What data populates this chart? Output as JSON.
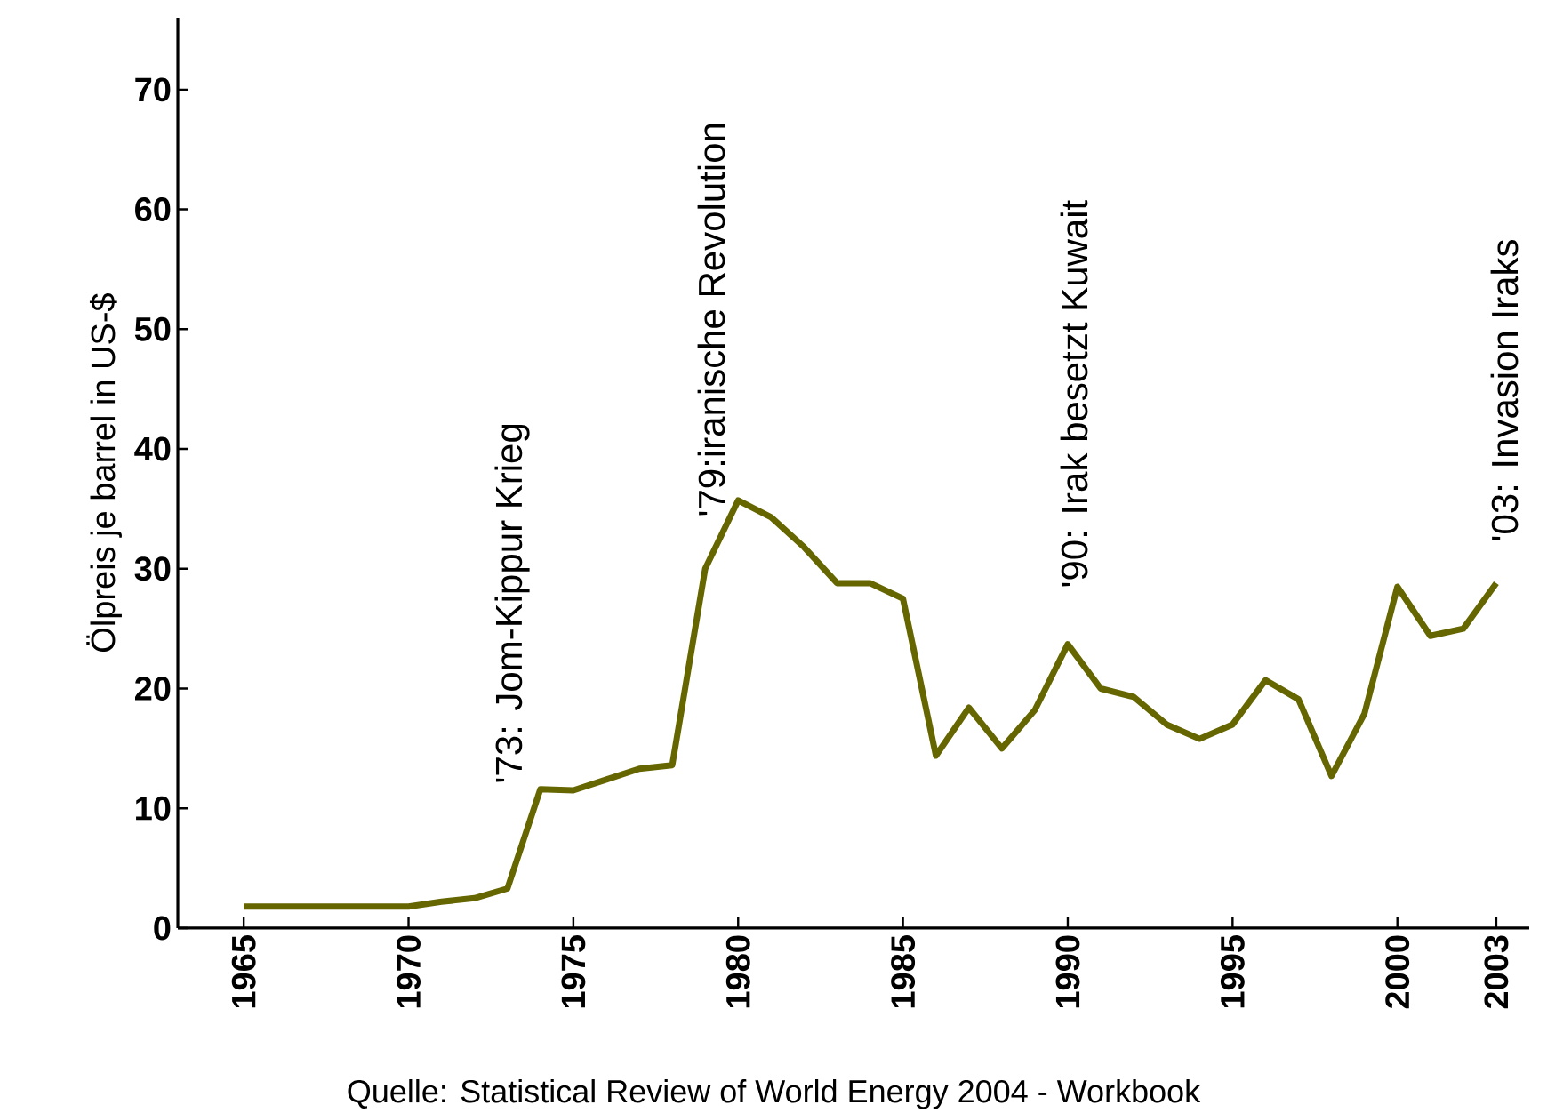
{
  "chart_data": {
    "type": "line",
    "ylabel": "Ölpreis je barrel in US-$",
    "x": [
      1965,
      1966,
      1967,
      1968,
      1969,
      1970,
      1971,
      1972,
      1973,
      1974,
      1975,
      1976,
      1977,
      1978,
      1979,
      1980,
      1981,
      1982,
      1983,
      1984,
      1985,
      1986,
      1987,
      1988,
      1989,
      1990,
      1991,
      1992,
      1993,
      1994,
      1995,
      1996,
      1997,
      1998,
      1999,
      2000,
      2001,
      2002,
      2003
    ],
    "series": [
      {
        "color": "#666600",
        "values": [
          1.8,
          1.8,
          1.8,
          1.8,
          1.8,
          1.8,
          2.2,
          2.5,
          3.3,
          11.6,
          11.5,
          12.4,
          13.3,
          13.6,
          30.0,
          35.7,
          34.3,
          31.8,
          28.8,
          28.8,
          27.5,
          14.4,
          18.4,
          15.0,
          18.2,
          23.7,
          20.0,
          19.3,
          17.0,
          15.8,
          17.0,
          20.7,
          19.1,
          12.7,
          17.9,
          28.5,
          24.4,
          25.0,
          28.8
        ]
      }
    ],
    "xlim": [
      1963,
      2004
    ],
    "ylim": [
      0,
      76
    ],
    "xticks": [
      1965,
      1970,
      1975,
      1980,
      1985,
      1990,
      1995,
      2000,
      2003
    ],
    "yticks": [
      0,
      10,
      20,
      30,
      40,
      50,
      60,
      70
    ],
    "grid": false,
    "marker": "none",
    "line_style": "solid",
    "annotations": [
      "'73: Jom-Kippur Krieg",
      "'79:iranische Revolution",
      "'90: Irak besetzt Kuwait",
      "'03: Invasion Iraks",
      "Quelle: Statistical Review of World Energy 2004 - Workbook"
    ]
  }
}
